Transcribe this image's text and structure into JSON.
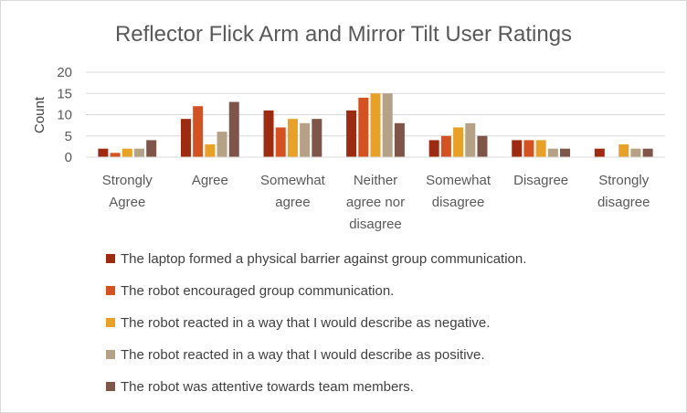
{
  "chart_data": {
    "type": "bar",
    "title": "Reflector Flick Arm and Mirror Tilt User Ratings",
    "xlabel": "",
    "ylabel": "Count",
    "ylim": [
      0,
      20
    ],
    "yticks": [
      "0",
      "5",
      "10",
      "15",
      "20"
    ],
    "categories": [
      [
        "Strongly",
        "Agree"
      ],
      [
        "Agree"
      ],
      [
        "Somewhat",
        "agree"
      ],
      [
        "Neither",
        "agree nor",
        "disagree"
      ],
      [
        "Somewhat",
        "disagree"
      ],
      [
        "Disagree"
      ],
      [
        "Strongly",
        "disagree"
      ]
    ],
    "series": [
      {
        "name": "The laptop formed a physical barrier against group communication.",
        "color": "#9e2a10",
        "values": [
          2,
          9,
          11,
          11,
          4,
          4,
          2
        ]
      },
      {
        "name": "The robot encouraged group communication.",
        "color": "#d55120",
        "values": [
          1,
          12,
          7,
          14,
          5,
          4,
          0
        ]
      },
      {
        "name": "The robot reacted in a way that I would describe as negative.",
        "color": "#e8a124",
        "values": [
          2,
          3,
          9,
          15,
          7,
          4,
          3
        ]
      },
      {
        "name": "The robot reacted in a way that I would describe as positive.",
        "color": "#b5a185",
        "values": [
          2,
          6,
          8,
          15,
          8,
          2,
          2
        ]
      },
      {
        "name": "The robot was attentive towards team members.",
        "color": "#7e5548",
        "values": [
          4,
          13,
          9,
          8,
          5,
          2,
          2
        ]
      }
    ],
    "gridlines": true,
    "legend_position": "bottom"
  }
}
